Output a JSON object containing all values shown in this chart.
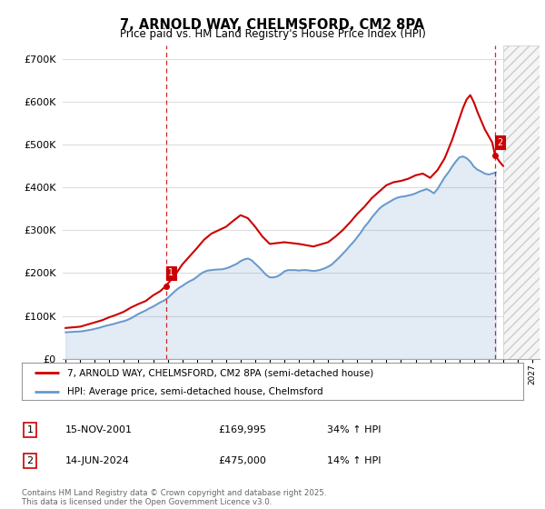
{
  "title": "7, ARNOLD WAY, CHELMSFORD, CM2 8PA",
  "subtitle": "Price paid vs. HM Land Registry's House Price Index (HPI)",
  "ylabel_ticks": [
    "£0",
    "£100K",
    "£200K",
    "£300K",
    "£400K",
    "£500K",
    "£600K",
    "£700K"
  ],
  "ytick_values": [
    0,
    100000,
    200000,
    300000,
    400000,
    500000,
    600000,
    700000
  ],
  "ylim": [
    0,
    730000
  ],
  "xlim_start": 1994.8,
  "xlim_end": 2027.5,
  "legend_line1": "7, ARNOLD WAY, CHELMSFORD, CM2 8PA (semi-detached house)",
  "legend_line2": "HPI: Average price, semi-detached house, Chelmsford",
  "line1_color": "#cc0000",
  "line2_color": "#6699cc",
  "vline_color": "#cc0000",
  "marker1_label": "1",
  "marker2_label": "2",
  "marker1_x": 2001.87,
  "marker1_y": 169995,
  "marker2_x": 2024.45,
  "marker2_y": 475000,
  "annotation1_date": "15-NOV-2001",
  "annotation1_price": "£169,995",
  "annotation1_hpi": "34% ↑ HPI",
  "annotation2_date": "14-JUN-2024",
  "annotation2_price": "£475,000",
  "annotation2_hpi": "14% ↑ HPI",
  "footer": "Contains HM Land Registry data © Crown copyright and database right 2025.\nThis data is licensed under the Open Government Licence v3.0.",
  "background_color": "#ffffff",
  "grid_color": "#dddddd",
  "hpi_line_years": [
    1995.0,
    1995.25,
    1995.5,
    1995.75,
    1996.0,
    1996.25,
    1996.5,
    1996.75,
    1997.0,
    1997.25,
    1997.5,
    1997.75,
    1998.0,
    1998.25,
    1998.5,
    1998.75,
    1999.0,
    1999.25,
    1999.5,
    1999.75,
    2000.0,
    2000.25,
    2000.5,
    2000.75,
    2001.0,
    2001.25,
    2001.5,
    2001.75,
    2002.0,
    2002.25,
    2002.5,
    2002.75,
    2003.0,
    2003.25,
    2003.5,
    2003.75,
    2004.0,
    2004.25,
    2004.5,
    2004.75,
    2005.0,
    2005.25,
    2005.5,
    2005.75,
    2006.0,
    2006.25,
    2006.5,
    2006.75,
    2007.0,
    2007.25,
    2007.5,
    2007.75,
    2008.0,
    2008.25,
    2008.5,
    2008.75,
    2009.0,
    2009.25,
    2009.5,
    2009.75,
    2010.0,
    2010.25,
    2010.5,
    2010.75,
    2011.0,
    2011.25,
    2011.5,
    2011.75,
    2012.0,
    2012.25,
    2012.5,
    2012.75,
    2013.0,
    2013.25,
    2013.5,
    2013.75,
    2014.0,
    2014.25,
    2014.5,
    2014.75,
    2015.0,
    2015.25,
    2015.5,
    2015.75,
    2016.0,
    2016.25,
    2016.5,
    2016.75,
    2017.0,
    2017.25,
    2017.5,
    2017.75,
    2018.0,
    2018.25,
    2018.5,
    2018.75,
    2019.0,
    2019.25,
    2019.5,
    2019.75,
    2020.0,
    2020.25,
    2020.5,
    2020.75,
    2021.0,
    2021.25,
    2021.5,
    2021.75,
    2022.0,
    2022.25,
    2022.5,
    2022.75,
    2023.0,
    2023.25,
    2023.5,
    2023.75,
    2024.0,
    2024.25,
    2024.5
  ],
  "hpi_line_values": [
    62000,
    62500,
    63000,
    63500,
    64000,
    65000,
    66500,
    68000,
    70000,
    72000,
    74500,
    77000,
    79000,
    81000,
    83500,
    86000,
    88000,
    91000,
    95000,
    100000,
    105000,
    109000,
    113000,
    118000,
    122000,
    127000,
    132000,
    136000,
    142000,
    150000,
    158000,
    165000,
    170000,
    176000,
    181000,
    185000,
    191000,
    198000,
    203000,
    206000,
    207000,
    208000,
    208500,
    209000,
    211000,
    214000,
    218000,
    222000,
    228000,
    232000,
    234000,
    230000,
    222000,
    214000,
    205000,
    196000,
    190000,
    190000,
    192000,
    197000,
    204000,
    207000,
    207000,
    207000,
    206000,
    207000,
    207000,
    206000,
    205000,
    206000,
    208000,
    211000,
    215000,
    220000,
    228000,
    236000,
    245000,
    254000,
    264000,
    273000,
    284000,
    295000,
    308000,
    318000,
    330000,
    340000,
    350000,
    357000,
    362000,
    367000,
    372000,
    376000,
    378000,
    379000,
    381000,
    383000,
    386000,
    390000,
    393000,
    396000,
    392000,
    386000,
    396000,
    410000,
    424000,
    435000,
    448000,
    460000,
    470000,
    472000,
    468000,
    460000,
    448000,
    441000,
    437000,
    432000,
    430000,
    432000,
    435000
  ],
  "price_line_years": [
    1995.0,
    1996.0,
    1997.0,
    1997.5,
    1998.0,
    1998.5,
    1999.0,
    1999.5,
    2000.0,
    2000.5,
    2001.0,
    2001.5,
    2001.87,
    2002.5,
    2003.0,
    2004.0,
    2004.5,
    2005.0,
    2006.0,
    2006.5,
    2007.0,
    2007.5,
    2008.0,
    2008.5,
    2009.0,
    2010.0,
    2011.0,
    2012.0,
    2013.0,
    2013.5,
    2014.0,
    2014.5,
    2015.0,
    2015.5,
    2016.0,
    2016.5,
    2017.0,
    2017.5,
    2018.0,
    2018.5,
    2019.0,
    2019.5,
    2020.0,
    2020.5,
    2021.0,
    2021.5,
    2022.0,
    2022.25,
    2022.5,
    2022.75,
    2023.0,
    2023.25,
    2023.5,
    2023.75,
    2024.0,
    2024.25,
    2024.45,
    2024.75,
    2025.0
  ],
  "price_line_values": [
    72000,
    75000,
    85000,
    90000,
    97000,
    103000,
    110000,
    120000,
    128000,
    135000,
    148000,
    158000,
    169995,
    195000,
    220000,
    258000,
    278000,
    292000,
    308000,
    322000,
    335000,
    328000,
    308000,
    285000,
    268000,
    272000,
    268000,
    262000,
    272000,
    285000,
    300000,
    318000,
    338000,
    355000,
    375000,
    390000,
    405000,
    412000,
    415000,
    420000,
    428000,
    432000,
    422000,
    440000,
    468000,
    510000,
    560000,
    585000,
    605000,
    615000,
    598000,
    575000,
    555000,
    535000,
    520000,
    505000,
    475000,
    460000,
    450000
  ]
}
